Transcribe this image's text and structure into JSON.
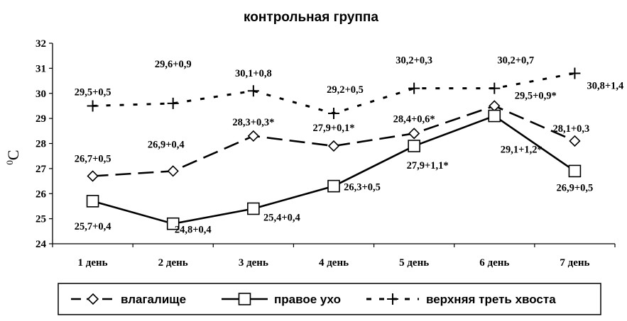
{
  "chart_data": {
    "type": "line",
    "title": "контрольная группа",
    "ylabel": "°C",
    "ylabel_degree": "0",
    "ylabel_unit": "C",
    "xlabel": "",
    "ylim": [
      24,
      32
    ],
    "yticks": [
      "24",
      "25",
      "26",
      "27",
      "28",
      "29",
      "30",
      "31",
      "32"
    ],
    "categories": [
      "1 день",
      "2 день",
      "3 день",
      "4 день",
      "5 день",
      "6 день",
      "7 день"
    ],
    "grid": false,
    "legend_position": "bottom",
    "series": [
      {
        "name": "влагалище",
        "marker": "diamond",
        "line_style": "long-dash",
        "values": [
          26.7,
          26.9,
          28.3,
          27.9,
          28.4,
          29.5,
          28.1
        ],
        "labels": [
          "26,7+0,5",
          "26,9+0,4",
          "28,3+0,3*",
          "27,9+0,1*",
          "28,4+0,6*",
          "29,5+0,9*",
          "28,1+0,3"
        ]
      },
      {
        "name": "правое ухо",
        "marker": "square",
        "line_style": "solid",
        "values": [
          25.7,
          24.8,
          25.4,
          26.3,
          27.9,
          29.1,
          26.9
        ],
        "labels": [
          "25,7+0,4",
          "24,8+0,4",
          "25,4+0,4",
          "26,3+0,5",
          "27,9+1,1*",
          "29,1+1,2*",
          "26,9+0,5"
        ]
      },
      {
        "name": "верхняя треть хвоста",
        "marker": "plus",
        "line_style": "short-dash",
        "values": [
          29.5,
          29.6,
          30.1,
          29.2,
          30.2,
          30.2,
          30.8
        ],
        "labels": [
          "29,5+0,5",
          "29,6+0,9",
          "30,1+0,8",
          "29,2+0,5",
          "30,2+0,3",
          "30,2+0,7",
          "30,8+1,4"
        ]
      }
    ]
  }
}
